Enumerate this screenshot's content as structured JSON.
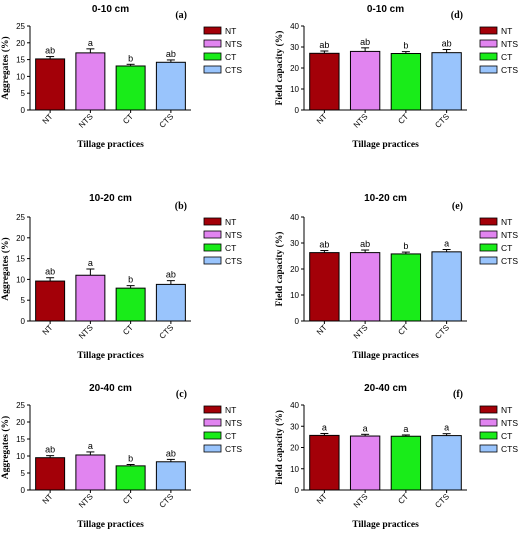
{
  "colors": {
    "NT": "#a30008",
    "NTS": "#e184f0",
    "CT": "#19ec19",
    "CTS": "#99c4fc"
  },
  "chart_data": [
    {
      "type": "bar",
      "panel": "(a)",
      "title": "0-10 cm",
      "xlabel": "Tillage practices",
      "ylabel": "Aggregates (%)",
      "ylim": [
        0,
        25
      ],
      "yticks": [
        0,
        5,
        10,
        15,
        20,
        25
      ],
      "categories": [
        "NT",
        "NTS",
        "CT",
        "CTS"
      ],
      "values": [
        15.2,
        17.0,
        13.1,
        14.2
      ],
      "errors": [
        0.7,
        1.2,
        0.5,
        0.7
      ],
      "labels": [
        "ab",
        "a",
        "b",
        "ab"
      ],
      "legend": [
        "NT",
        "NTS",
        "CT",
        "CTS"
      ],
      "legend_position": "right"
    },
    {
      "type": "bar",
      "panel": "(d)",
      "title": "0-10 cm",
      "xlabel": "Tillage practices",
      "ylabel": "Field capacity (%)",
      "ylim": [
        0,
        40
      ],
      "yticks": [
        0,
        10,
        20,
        30,
        40
      ],
      "categories": [
        "NT",
        "NTS",
        "CT",
        "CTS"
      ],
      "values": [
        27.0,
        27.9,
        26.9,
        27.3
      ],
      "errors": [
        1.1,
        1.7,
        0.9,
        1.5
      ],
      "labels": [
        "ab",
        "ab",
        "b",
        "ab"
      ],
      "legend": [
        "NT",
        "NTS",
        "CT",
        "CTS"
      ],
      "legend_position": "right"
    },
    {
      "type": "bar",
      "panel": "(b)",
      "title": "10-20 cm",
      "xlabel": "Tillage practices",
      "ylabel": "Aggregates (%)",
      "ylim": [
        0,
        25
      ],
      "yticks": [
        0,
        5,
        10,
        15,
        20,
        25
      ],
      "categories": [
        "NT",
        "NTS",
        "CT",
        "CTS"
      ],
      "values": [
        9.6,
        11.0,
        7.9,
        8.8
      ],
      "errors": [
        0.8,
        1.5,
        0.6,
        0.9
      ],
      "labels": [
        "ab",
        "a",
        "b",
        "ab"
      ],
      "legend": [
        "NT",
        "NTS",
        "CT",
        "CTS"
      ],
      "legend_position": "right"
    },
    {
      "type": "bar",
      "panel": "(e)",
      "title": "10-20 cm",
      "xlabel": "Tillage practices",
      "ylabel": "Field capacity (%)",
      "ylim": [
        0,
        40
      ],
      "yticks": [
        0,
        10,
        20,
        30,
        40
      ],
      "categories": [
        "NT",
        "NTS",
        "CT",
        "CTS"
      ],
      "values": [
        26.3,
        26.3,
        25.8,
        26.6
      ],
      "errors": [
        0.8,
        1.0,
        0.7,
        0.9
      ],
      "labels": [
        "ab",
        "ab",
        "b",
        "a"
      ],
      "legend": [
        "NT",
        "NTS",
        "CT",
        "CTS"
      ],
      "legend_position": "right"
    },
    {
      "type": "bar",
      "panel": "(c)",
      "title": "20-40 cm",
      "xlabel": "Tillage practices",
      "ylabel": "Aggregates (%)",
      "ylim": [
        0,
        25
      ],
      "yticks": [
        0,
        5,
        10,
        15,
        20,
        25
      ],
      "categories": [
        "NT",
        "NTS",
        "CT",
        "CTS"
      ],
      "values": [
        9.5,
        10.3,
        7.1,
        8.3
      ],
      "errors": [
        0.6,
        0.9,
        0.4,
        0.7
      ],
      "labels": [
        "ab",
        "a",
        "b",
        "ab"
      ],
      "legend": [
        "NT",
        "NTS",
        "CT",
        "CTS"
      ],
      "legend_position": "right"
    },
    {
      "type": "bar",
      "panel": "(f)",
      "title": "20-40 cm",
      "xlabel": "Tillage practices",
      "ylabel": "Field capacity (%)",
      "ylim": [
        0,
        40
      ],
      "yticks": [
        0,
        10,
        20,
        30,
        40
      ],
      "categories": [
        "NT",
        "NTS",
        "CT",
        "CTS"
      ],
      "values": [
        25.7,
        25.4,
        25.3,
        25.6
      ],
      "errors": [
        0.9,
        0.8,
        0.6,
        0.9
      ],
      "labels": [
        "a",
        "a",
        "a",
        "a"
      ],
      "legend": [
        "NT",
        "NTS",
        "CT",
        "CTS"
      ],
      "legend_position": "right"
    }
  ]
}
